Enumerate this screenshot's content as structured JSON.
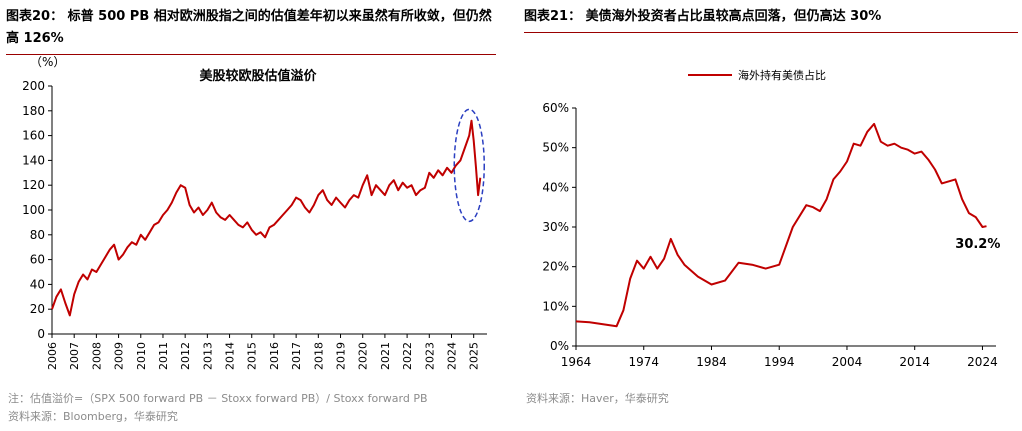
{
  "left_panel": {
    "figure_title": "图表20： 标普 500 PB 相对欧洲股指之间的估值差年初以来虽然有所收敛，但仍然高 126%",
    "note": "注：估值溢价=（SPX 500 forward PB － Stoxx forward PB）/ Stoxx forward PB",
    "source": "资料来源：Bloomberg，华泰研究"
  },
  "right_panel": {
    "figure_title": "图表21： 美债海外投资者占比虽较高点回落，但仍高达 30%",
    "source": "资料来源：Haver，华泰研究"
  },
  "colors": {
    "series": "#c00000",
    "axis": "#000000",
    "highlight": "#2b3fc1",
    "rule": "#9a0000",
    "note": "#8c8c8c"
  },
  "chart_data": [
    {
      "type": "line",
      "title": "美股较欧股估值溢价",
      "unit_label": "（%）",
      "xlabel": "",
      "ylabel": "",
      "xlim": [
        2006,
        2025.6
      ],
      "ylim": [
        0,
        200
      ],
      "yticks": [
        0,
        20,
        40,
        60,
        80,
        100,
        120,
        140,
        160,
        180,
        200
      ],
      "xticks": [
        2006,
        2007,
        2008,
        2009,
        2010,
        2011,
        2012,
        2013,
        2014,
        2015,
        2016,
        2017,
        2018,
        2019,
        2020,
        2021,
        2022,
        2023,
        2024,
        2025
      ],
      "grid": false,
      "legend": "none",
      "highlight": "dashed ellipse around 2024–2025",
      "series": [
        {
          "x": [
            2006.0,
            2006.2,
            2006.4,
            2006.6,
            2006.8,
            2007.0,
            2007.2,
            2007.4,
            2007.6,
            2007.8,
            2008.0,
            2008.2,
            2008.4,
            2008.6,
            2008.8,
            2009.0,
            2009.2,
            2009.4,
            2009.6,
            2009.8,
            2010.0,
            2010.2,
            2010.4,
            2010.6,
            2010.8,
            2011.0,
            2011.2,
            2011.4,
            2011.6,
            2011.8,
            2012.0,
            2012.2,
            2012.4,
            2012.6,
            2012.8,
            2013.0,
            2013.2,
            2013.4,
            2013.6,
            2013.8,
            2014.0,
            2014.2,
            2014.4,
            2014.6,
            2014.8,
            2015.0,
            2015.2,
            2015.4,
            2015.6,
            2015.8,
            2016.0,
            2016.2,
            2016.4,
            2016.6,
            2016.8,
            2017.0,
            2017.2,
            2017.4,
            2017.6,
            2017.8,
            2018.0,
            2018.2,
            2018.4,
            2018.6,
            2018.8,
            2019.0,
            2019.2,
            2019.4,
            2019.6,
            2019.8,
            2020.0,
            2020.2,
            2020.4,
            2020.6,
            2020.8,
            2021.0,
            2021.2,
            2021.4,
            2021.6,
            2021.8,
            2022.0,
            2022.2,
            2022.4,
            2022.6,
            2022.8,
            2023.0,
            2023.2,
            2023.4,
            2023.6,
            2023.8,
            2024.0,
            2024.2,
            2024.4,
            2024.6,
            2024.8,
            2024.9,
            2025.0,
            2025.1,
            2025.2,
            2025.3
          ],
          "values": [
            20,
            30,
            36,
            25,
            15,
            32,
            42,
            48,
            44,
            52,
            50,
            56,
            62,
            68,
            72,
            60,
            64,
            70,
            74,
            72,
            80,
            76,
            82,
            88,
            90,
            96,
            100,
            106,
            114,
            120,
            118,
            104,
            98,
            102,
            96,
            100,
            106,
            98,
            94,
            92,
            96,
            92,
            88,
            86,
            90,
            84,
            80,
            82,
            78,
            86,
            88,
            92,
            96,
            100,
            104,
            110,
            108,
            102,
            98,
            104,
            112,
            116,
            108,
            104,
            110,
            106,
            102,
            108,
            112,
            110,
            120,
            128,
            112,
            120,
            116,
            112,
            120,
            124,
            116,
            122,
            118,
            120,
            112,
            116,
            118,
            130,
            126,
            132,
            128,
            134,
            130,
            136,
            140,
            150,
            160,
            172,
            156,
            135,
            112,
            126
          ]
        }
      ]
    },
    {
      "type": "line",
      "title": "",
      "xlabel": "",
      "ylabel": "",
      "xlim": [
        1964,
        2026
      ],
      "ylim": [
        0,
        60
      ],
      "yticks": [
        0,
        10,
        20,
        30,
        40,
        50,
        60
      ],
      "xticks": [
        1964,
        1974,
        1984,
        1994,
        2004,
        2014,
        2024
      ],
      "grid": false,
      "legend": "top-left",
      "annotation": {
        "text": "30.2%",
        "x": 2024.5,
        "y": 30.2
      },
      "series": [
        {
          "name": "海外持有美债占比",
          "x": [
            1964,
            1966,
            1968,
            1970,
            1971,
            1972,
            1973,
            1974,
            1975,
            1976,
            1977,
            1978,
            1979,
            1980,
            1982,
            1984,
            1986,
            1988,
            1990,
            1992,
            1994,
            1996,
            1998,
            1999,
            2000,
            2001,
            2002,
            2003,
            2004,
            2005,
            2006,
            2007,
            2008,
            2009,
            2010,
            2011,
            2012,
            2013,
            2014,
            2015,
            2016,
            2017,
            2018,
            2019,
            2020,
            2021,
            2022,
            2023,
            2024,
            2024.6
          ],
          "values": [
            6.2,
            6.0,
            5.5,
            5.0,
            9.0,
            17.0,
            21.5,
            19.5,
            22.5,
            19.5,
            22.0,
            27.0,
            23.0,
            20.5,
            17.5,
            15.5,
            16.5,
            21.0,
            20.5,
            19.5,
            20.5,
            30.0,
            35.5,
            35.0,
            34.0,
            37.0,
            42.0,
            44.0,
            46.5,
            51.0,
            50.5,
            54.0,
            56.0,
            51.5,
            50.5,
            51.0,
            50.0,
            49.5,
            48.5,
            49.0,
            47.0,
            44.5,
            41.0,
            41.5,
            42.0,
            37.0,
            33.5,
            32.5,
            30.0,
            30.2
          ]
        }
      ]
    }
  ]
}
